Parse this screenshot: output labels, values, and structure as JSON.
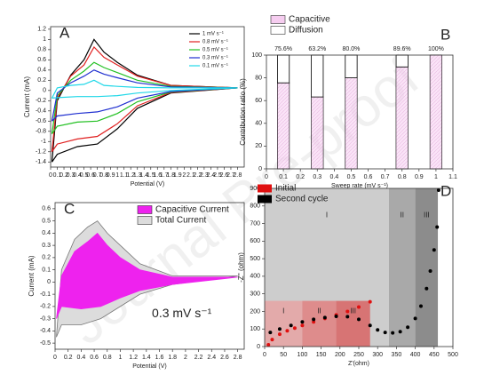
{
  "watermark": "Journal Pre-proof",
  "chart_data": [
    {
      "type": "line",
      "panel_label": "A",
      "x_label": "Potential (V)",
      "y_label": "Current (mA)",
      "legend": "upper right",
      "xlim": [
        0,
        2.9
      ],
      "xticks": [
        0,
        0.1,
        0.2,
        0.3,
        0.4,
        0.5,
        0.6,
        0.7,
        0.8,
        0.9,
        1,
        1.1,
        1.2,
        1.3,
        1.4,
        1.5,
        1.6,
        1.7,
        1.8,
        1.9,
        2,
        2.1,
        2.2,
        2.3,
        2.4,
        2.5,
        2.6,
        2.7,
        2.8
      ],
      "ylim": [
        -1.5,
        1.25
      ],
      "yticks": [
        -1.4,
        -1.2,
        -1,
        -0.8,
        -0.6,
        -0.4,
        -0.2,
        0,
        0.2,
        0.4,
        0.6,
        0.8,
        1,
        1.2
      ],
      "series": [
        {
          "name": "1 mV s⁻¹",
          "color": "#000000",
          "x": [
            0.02,
            0.1,
            0.3,
            0.5,
            0.65,
            0.8,
            1.0,
            1.3,
            1.8,
            2.8,
            1.8,
            1.3,
            1.0,
            0.7,
            0.4,
            0.1,
            0.02
          ],
          "values": [
            -1.4,
            -0.2,
            0.3,
            0.6,
            1.0,
            0.75,
            0.55,
            0.3,
            0.1,
            0.05,
            -0.05,
            -0.35,
            -0.75,
            -1.05,
            -1.1,
            -1.25,
            -1.4
          ]
        },
        {
          "name": "0.8 mV s⁻¹",
          "color": "#e02020",
          "x": [
            0.02,
            0.1,
            0.3,
            0.5,
            0.65,
            0.8,
            1.0,
            1.3,
            1.8,
            2.8,
            1.8,
            1.3,
            1.0,
            0.7,
            0.4,
            0.1,
            0.02
          ],
          "values": [
            -1.2,
            -0.15,
            0.28,
            0.5,
            0.85,
            0.65,
            0.5,
            0.28,
            0.1,
            0.05,
            -0.04,
            -0.3,
            -0.65,
            -0.9,
            -0.95,
            -1.05,
            -1.2
          ]
        },
        {
          "name": "0.5 mV s⁻¹",
          "color": "#22c022",
          "x": [
            0.02,
            0.1,
            0.3,
            0.5,
            0.65,
            0.8,
            1.0,
            1.3,
            1.8,
            2.8,
            1.8,
            1.3,
            1.0,
            0.7,
            0.4,
            0.1,
            0.02
          ],
          "values": [
            -0.85,
            -0.1,
            0.2,
            0.38,
            0.55,
            0.45,
            0.35,
            0.2,
            0.08,
            0.05,
            -0.03,
            -0.22,
            -0.45,
            -0.6,
            -0.62,
            -0.7,
            -0.85
          ]
        },
        {
          "name": "0.3 mV s⁻¹",
          "color": "#1f2fd0",
          "x": [
            0.02,
            0.1,
            0.3,
            0.5,
            0.65,
            0.8,
            1.0,
            1.3,
            1.8,
            2.8,
            1.8,
            1.3,
            1.0,
            0.7,
            0.4,
            0.1,
            0.02
          ],
          "values": [
            -0.6,
            -0.05,
            0.15,
            0.28,
            0.4,
            0.32,
            0.25,
            0.15,
            0.07,
            0.05,
            -0.02,
            -0.15,
            -0.32,
            -0.42,
            -0.45,
            -0.5,
            -0.6
          ]
        },
        {
          "name": "0.1 mV s⁻¹",
          "color": "#20d8e8",
          "x": [
            0.02,
            0.1,
            0.3,
            0.5,
            0.65,
            0.8,
            1.0,
            1.3,
            1.8,
            2.8,
            1.8,
            1.3,
            1.0,
            0.7,
            0.4,
            0.1,
            0.02
          ],
          "values": [
            -0.15,
            0.05,
            0.1,
            0.12,
            0.2,
            0.1,
            0.08,
            0.06,
            0.05,
            0.05,
            0.0,
            -0.05,
            -0.1,
            -0.12,
            -0.12,
            -0.14,
            -0.15
          ]
        }
      ]
    },
    {
      "type": "bar",
      "panel_label": "B",
      "x_label": "Sweep rate (mV s⁻¹)",
      "y_label": "Contribution ratio (%)",
      "legend": "outside top left",
      "xlim": [
        0,
        1.1
      ],
      "xticks": [
        0,
        0.1,
        0.2,
        0.3,
        0.4,
        0.5,
        0.6,
        0.7,
        0.8,
        0.9,
        1,
        1.1
      ],
      "ylim": [
        0,
        100
      ],
      "yticks": [
        0,
        20,
        40,
        60,
        80,
        100
      ],
      "x": [
        0.1,
        0.3,
        0.5,
        0.8,
        1
      ],
      "series": [
        {
          "name": "Capacitive",
          "color": "#f6cdf0",
          "values": [
            75.6,
            63.2,
            80.0,
            89.6,
            100
          ],
          "value_labels": [
            "75.6%",
            "63.2%",
            "80.0%",
            "89.6%",
            "100%"
          ]
        },
        {
          "name": "Diffusion",
          "color": "#ffffff",
          "values": [
            24.4,
            36.8,
            20.0,
            10.4,
            0
          ]
        }
      ]
    },
    {
      "type": "area",
      "panel_label": "C",
      "x_label": "Potential (V)",
      "y_label": "Current (mA)",
      "legend": "upper right",
      "annotation": "0.3 mV s⁻¹",
      "xlim": [
        0,
        2.9
      ],
      "xticks": [
        0,
        0.2,
        0.4,
        0.6,
        0.8,
        1,
        1.2,
        1.4,
        1.6,
        1.8,
        2,
        2.2,
        2.4,
        2.6,
        2.8
      ],
      "ylim": [
        -0.55,
        0.65
      ],
      "yticks": [
        -0.5,
        -0.4,
        -0.3,
        -0.2,
        -0.1,
        0,
        0.1,
        0.2,
        0.3,
        0.4,
        0.5,
        0.6
      ],
      "series": [
        {
          "name": "Total Current",
          "color": "#dcdcdc",
          "x": [
            0.02,
            0.1,
            0.3,
            0.5,
            0.65,
            0.8,
            1.0,
            1.3,
            1.8,
            2.8,
            1.8,
            1.3,
            1.0,
            0.7,
            0.4,
            0.1,
            0.02
          ],
          "values": [
            -0.45,
            0.1,
            0.35,
            0.45,
            0.5,
            0.4,
            0.3,
            0.15,
            0.05,
            0.05,
            -0.02,
            -0.1,
            -0.2,
            -0.3,
            -0.35,
            -0.35,
            -0.45
          ]
        },
        {
          "name": "Capacitive Current",
          "color": "#ee22ee",
          "x": [
            0.02,
            0.1,
            0.3,
            0.5,
            0.65,
            0.8,
            1.0,
            1.3,
            1.8,
            2.8,
            1.8,
            1.3,
            1.0,
            0.7,
            0.4,
            0.1,
            0.02
          ],
          "values": [
            -0.3,
            0.05,
            0.25,
            0.33,
            0.4,
            0.3,
            0.2,
            0.1,
            0.04,
            0.04,
            -0.02,
            -0.07,
            -0.13,
            -0.2,
            -0.22,
            -0.2,
            -0.3
          ]
        }
      ]
    },
    {
      "type": "scatter",
      "panel_label": "D",
      "x_label": "Z'(ohm)",
      "y_label": "-Z'' (ohm)",
      "legend": "upper left",
      "xlim": [
        0,
        500
      ],
      "xticks": [
        0,
        50,
        100,
        150,
        200,
        250,
        300,
        350,
        400,
        450,
        500
      ],
      "ylim": [
        0,
        900
      ],
      "yticks": [
        0,
        100,
        200,
        300,
        400,
        500,
        600,
        700,
        800,
        900
      ],
      "regions": [
        {
          "label": "I",
          "from": 0,
          "to": 330,
          "color": "#cdcdcd"
        },
        {
          "label": "II",
          "from": 330,
          "to": 400,
          "color": "#a9a9a9"
        },
        {
          "label": "III",
          "from": 400,
          "to": 460,
          "color": "#8c8c8c"
        }
      ],
      "inset_top": 260,
      "inset_regions": [
        {
          "label": "I",
          "from": 0,
          "to": 100,
          "color": "#e6a3a3"
        },
        {
          "label": "II",
          "from": 100,
          "to": 190,
          "color": "#e08080"
        },
        {
          "label": "III",
          "from": 190,
          "to": 280,
          "color": "#d86464"
        }
      ],
      "series": [
        {
          "name": "Initial",
          "color": "#e01010",
          "x": [
            10,
            20,
            40,
            60,
            80,
            100,
            130,
            160,
            190,
            220,
            250,
            280
          ],
          "values": [
            10,
            40,
            70,
            90,
            105,
            120,
            140,
            160,
            180,
            200,
            225,
            255
          ]
        },
        {
          "name": "Second cycle",
          "color": "#000000",
          "x": [
            15,
            40,
            70,
            100,
            130,
            160,
            190,
            220,
            250,
            280,
            300,
            320,
            340,
            360,
            380,
            400,
            415,
            430,
            440,
            450,
            458,
            462
          ],
          "values": [
            80,
            100,
            120,
            140,
            155,
            165,
            172,
            170,
            155,
            120,
            95,
            80,
            78,
            85,
            110,
            160,
            230,
            330,
            430,
            550,
            680,
            890
          ]
        }
      ]
    }
  ]
}
